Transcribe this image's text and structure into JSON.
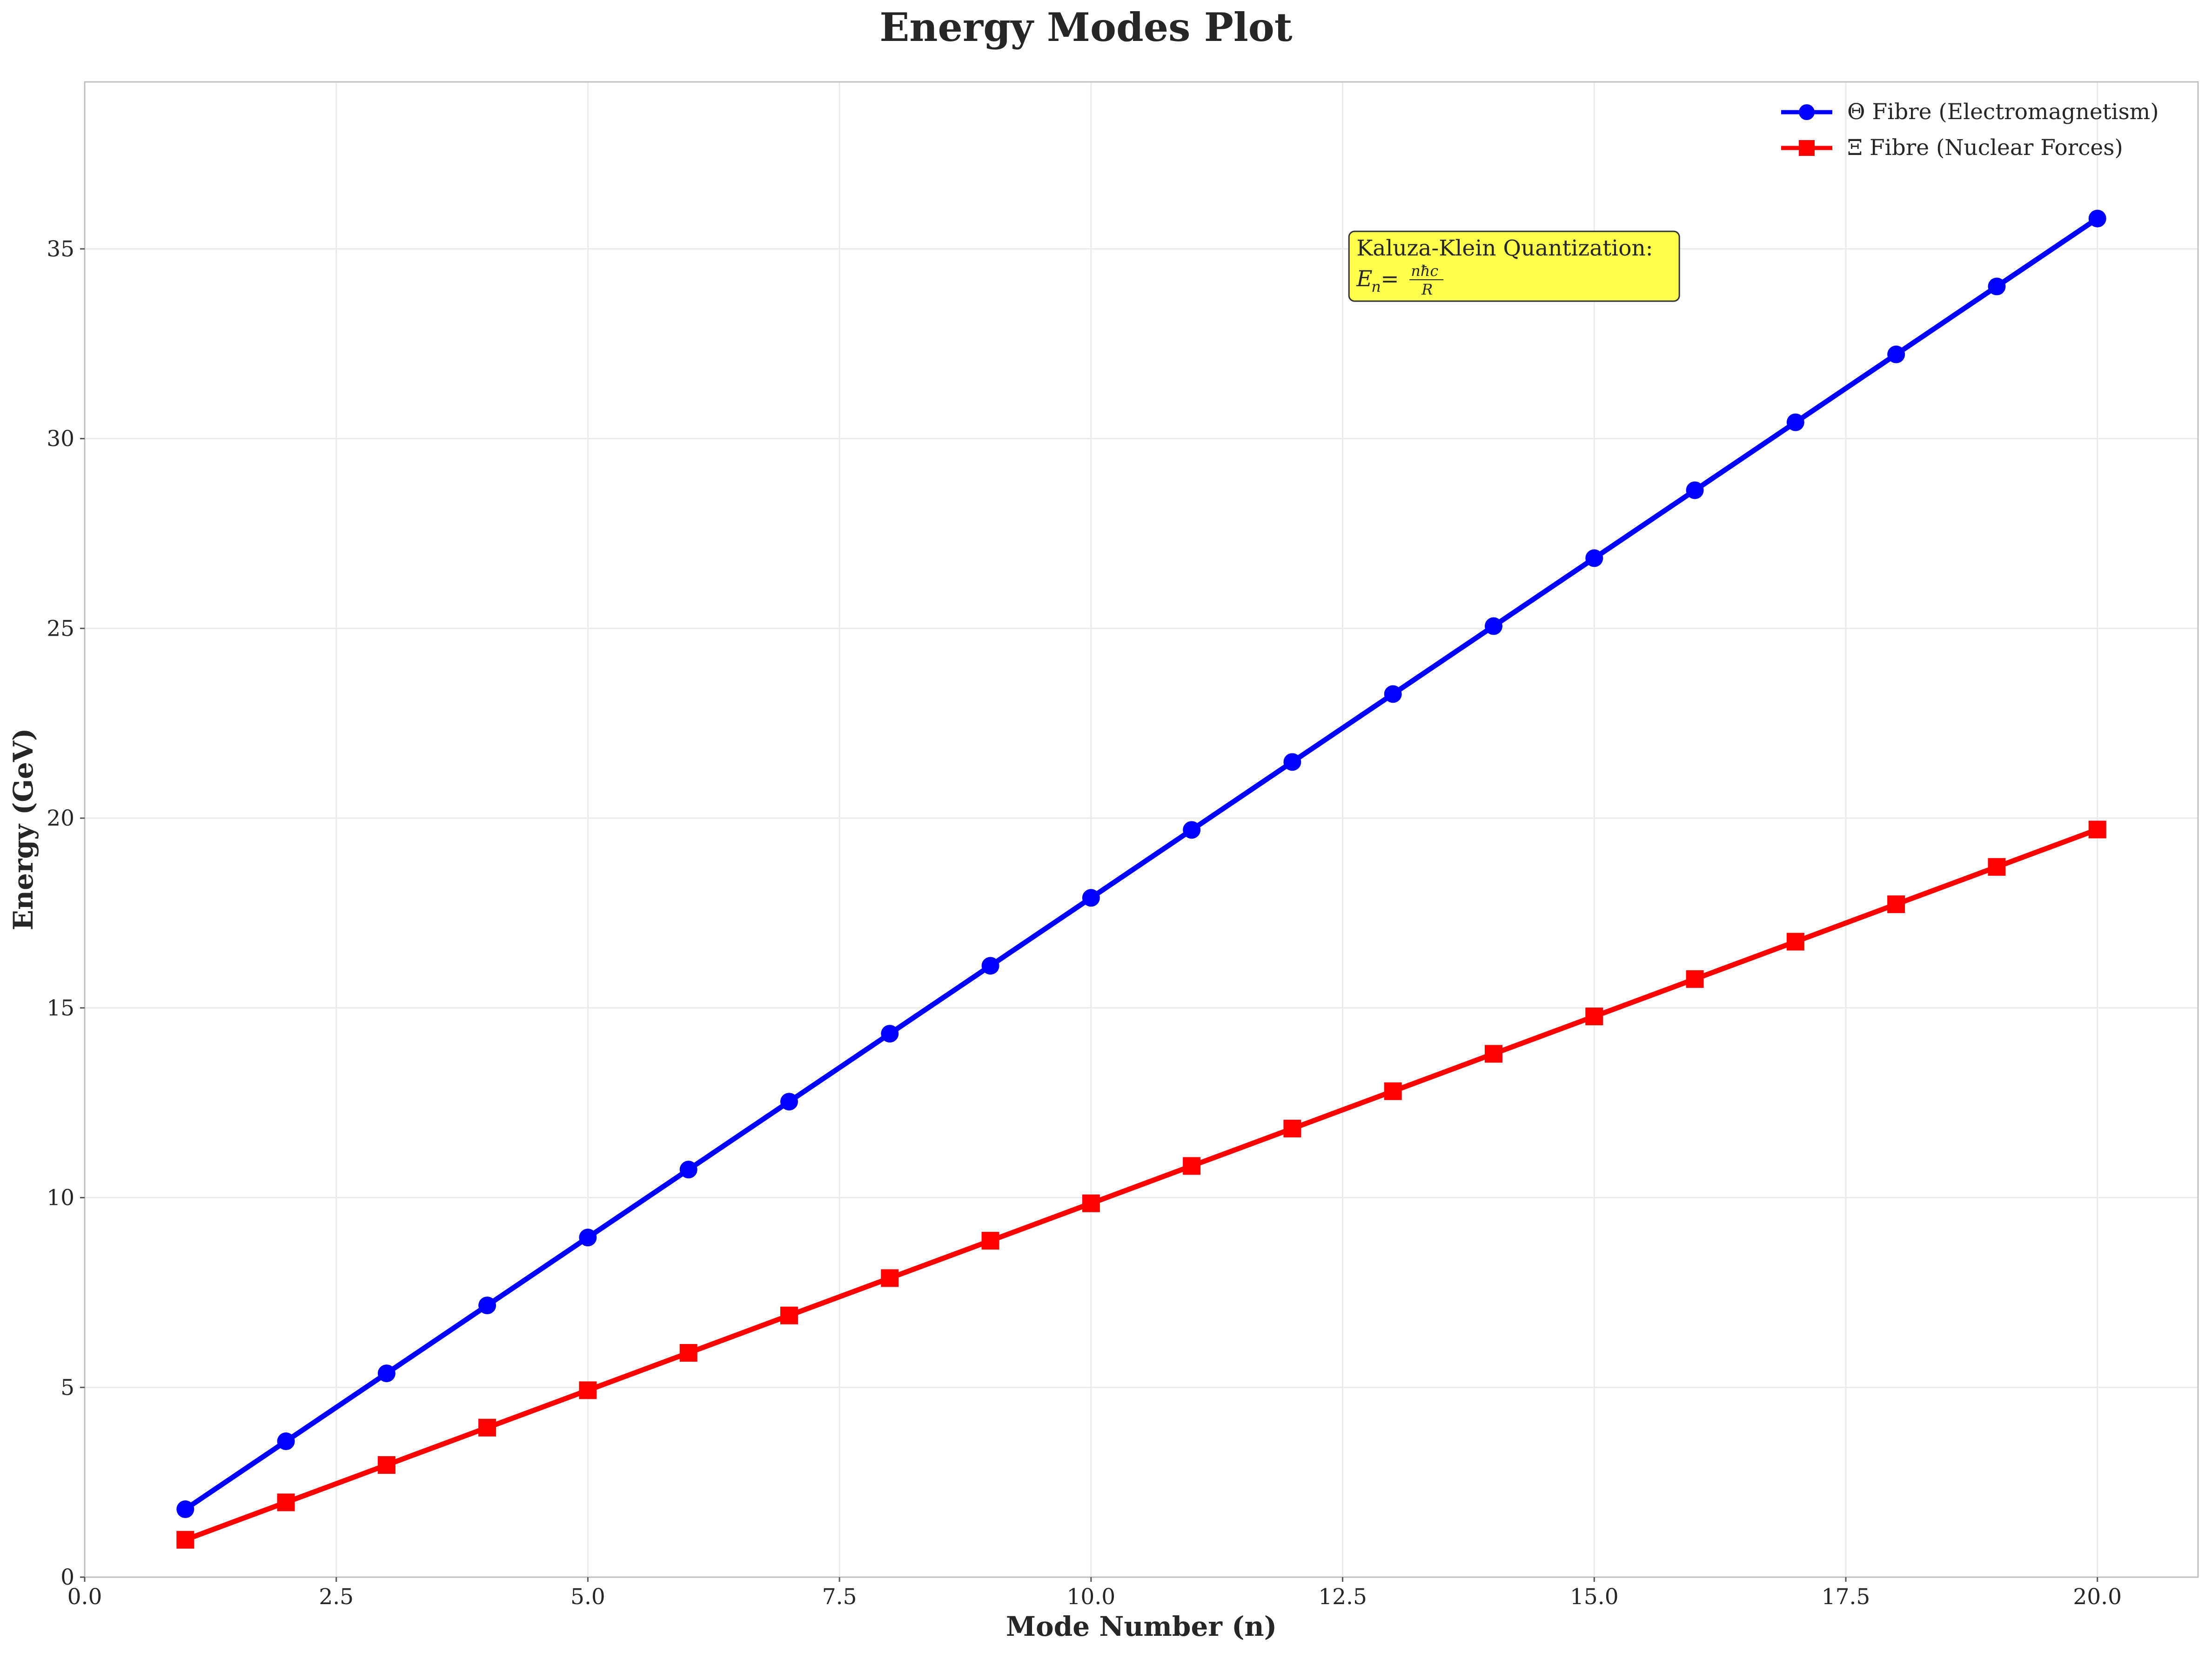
{
  "chart_data": {
    "type": "line",
    "title": "Energy Modes Plot",
    "xlabel": "Mode Number (n)",
    "ylabel": "Energy (GeV)",
    "xlim": [
      0,
      21
    ],
    "ylim": [
      0,
      39.4
    ],
    "xticks": [
      0,
      2.5,
      5,
      7.5,
      10,
      12.5,
      15,
      17.5,
      20
    ],
    "xtick_labels": [
      "0.0",
      "2.5",
      "5.0",
      "7.5",
      "10.0",
      "12.5",
      "15.0",
      "17.5",
      "20.0"
    ],
    "yticks": [
      0,
      5,
      10,
      15,
      20,
      25,
      30,
      35
    ],
    "ytick_labels": [
      "0",
      "5",
      "10",
      "15",
      "20",
      "25",
      "30",
      "35"
    ],
    "grid": true,
    "legend_position": "top-right",
    "x": [
      1,
      2,
      3,
      4,
      5,
      6,
      7,
      8,
      9,
      10,
      11,
      12,
      13,
      14,
      15,
      16,
      17,
      18,
      19,
      20
    ],
    "series": [
      {
        "name": "Θ Fibre (Electromagnetism)",
        "color": "#0000ff",
        "marker": "circle",
        "values": [
          1.79,
          3.58,
          5.37,
          7.16,
          8.95,
          10.74,
          12.53,
          14.32,
          16.11,
          17.9,
          19.69,
          21.48,
          23.27,
          25.06,
          26.85,
          28.64,
          30.43,
          32.22,
          34.01,
          35.8
        ]
      },
      {
        "name": "Ξ Fibre (Nuclear Forces)",
        "color": "#ff0000",
        "marker": "square",
        "values": [
          0.985,
          1.97,
          2.955,
          3.94,
          4.925,
          5.91,
          6.895,
          7.88,
          8.865,
          9.85,
          10.835,
          11.82,
          12.805,
          13.79,
          14.775,
          15.76,
          16.745,
          17.73,
          18.715,
          19.7
        ]
      }
    ],
    "annotation": {
      "line1": "Kaluza-Klein Quantization:",
      "line2_lhs": "E",
      "line2_sub": "n",
      "line2_eq": " = ",
      "line2_num": "nħc",
      "line2_den": "R",
      "background": "#ffff4d",
      "x": 12.6,
      "y": 33.5
    }
  }
}
